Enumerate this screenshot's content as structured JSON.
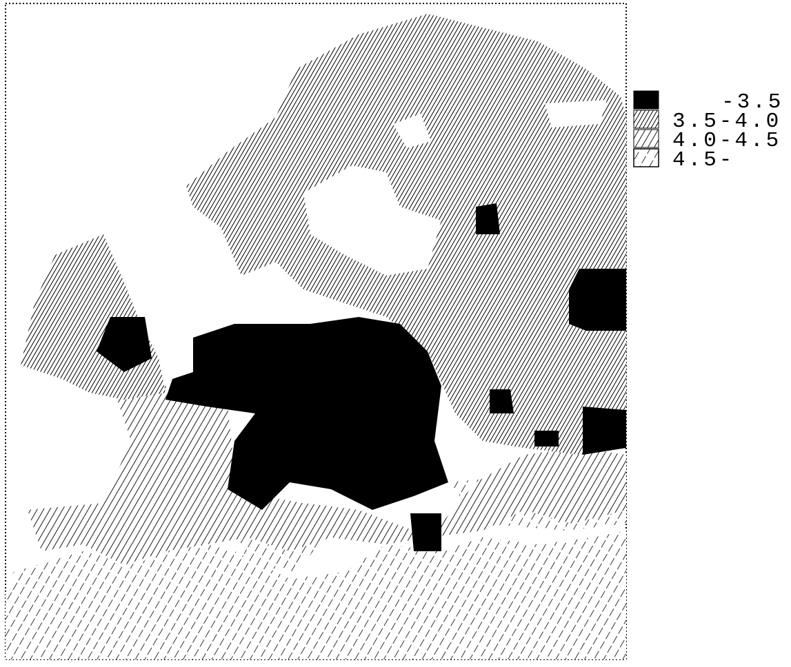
{
  "legend": {
    "items": [
      {
        "label": "-3.5"
      },
      {
        "label": "3.5-4.0"
      },
      {
        "label": "4.0-4.5"
      },
      {
        "label": "4.5-"
      }
    ]
  }
}
